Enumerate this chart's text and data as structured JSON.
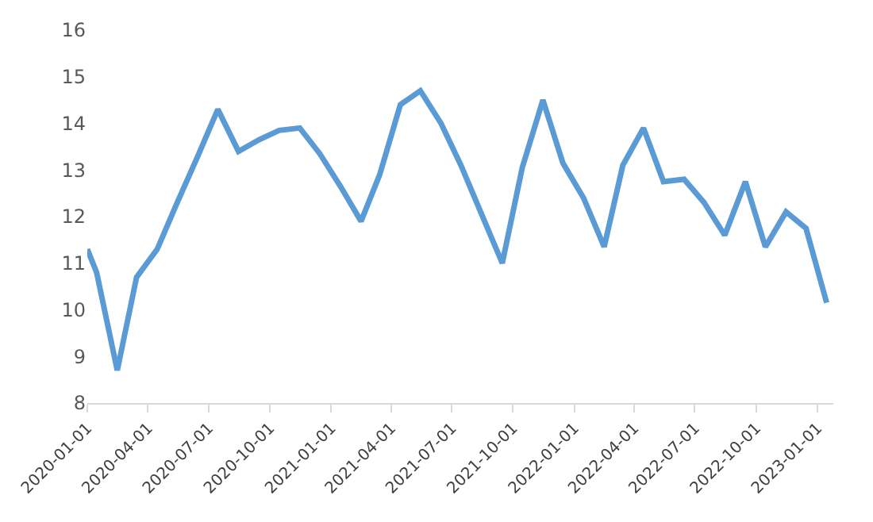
{
  "chart_data": {
    "type": "line",
    "x": [
      "2020-01-01",
      "2020-01-15",
      "2020-02-15",
      "2020-03-15",
      "2020-04-15",
      "2020-05-15",
      "2020-06-15",
      "2020-07-15",
      "2020-08-15",
      "2020-09-15",
      "2020-10-15",
      "2020-11-15",
      "2020-12-15",
      "2021-01-15",
      "2021-02-15",
      "2021-03-15",
      "2021-04-15",
      "2021-05-15",
      "2021-06-15",
      "2021-07-15",
      "2021-08-15",
      "2021-09-15",
      "2021-10-15",
      "2021-11-15",
      "2021-12-15",
      "2022-01-15",
      "2022-02-15",
      "2022-03-15",
      "2022-04-15",
      "2022-05-15",
      "2022-06-15",
      "2022-07-15",
      "2022-08-15",
      "2022-09-15",
      "2022-10-15",
      "2022-11-15",
      "2022-12-15",
      "2023-01-15"
    ],
    "series": [
      {
        "color": "#5b9bd5",
        "values": [
          11.3,
          10.8,
          8.7,
          10.7,
          11.3,
          12.3,
          13.3,
          14.3,
          13.4,
          13.65,
          13.85,
          13.9,
          13.35,
          12.65,
          11.9,
          12.9,
          14.4,
          14.7,
          14.0,
          13.1,
          12.05,
          11.0,
          13.05,
          14.5,
          13.15,
          12.4,
          11.35,
          13.1,
          13.9,
          12.75,
          12.8,
          12.3,
          11.6,
          12.75,
          11.35,
          12.1,
          11.75,
          10.15
        ]
      }
    ],
    "xlim": [
      "2020-01-01",
      "2023-01-25"
    ],
    "xticks": [
      "2020-01-01",
      "2020-04-01",
      "2020-07-01",
      "2020-10-01",
      "2021-01-01",
      "2021-04-01",
      "2021-07-01",
      "2021-10-01",
      "2022-01-01",
      "2022-04-01",
      "2022-07-01",
      "2022-10-01",
      "2023-01-01"
    ],
    "ylim": [
      8,
      16
    ],
    "yticks": [
      8,
      9,
      10,
      11,
      12,
      13,
      14,
      15,
      16
    ],
    "marker": "none",
    "line_style": "solid"
  }
}
